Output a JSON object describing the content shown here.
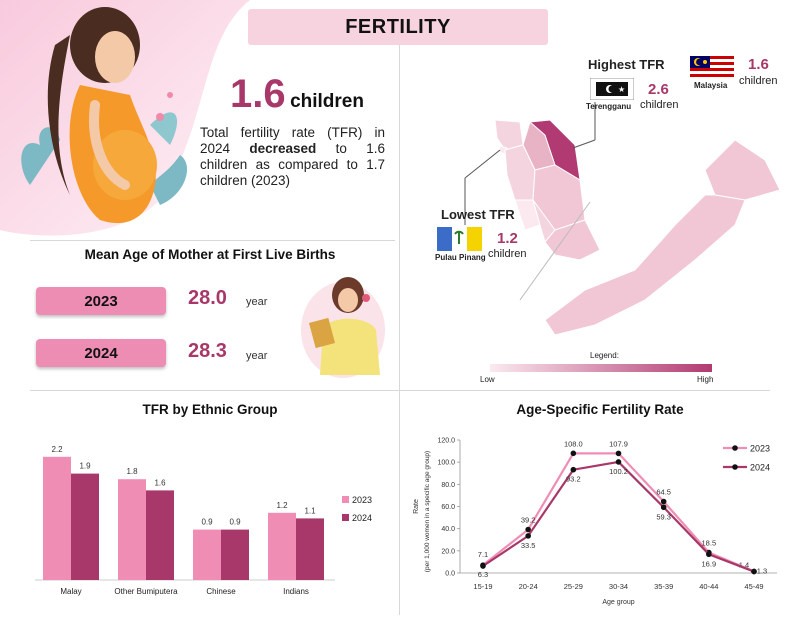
{
  "title": "FERTILITY",
  "tfr_summary": {
    "value": "1.6",
    "unit": "children",
    "description_pre": "Total fertility rate (TFR) in 2024 ",
    "description_bold": "decreased",
    "description_post": " to 1.6 children as compared to 1.7 children (2023)"
  },
  "map_panel": {
    "highest_label": "Highest TFR",
    "highest_state": "Terengganu",
    "highest_value": "2.6",
    "highest_unit": "children",
    "malaysia_label": "Malaysia",
    "malaysia_value": "1.6",
    "malaysia_unit": "children",
    "lowest_label": "Lowest TFR",
    "lowest_state": "Pulau Pinang",
    "lowest_value": "1.2",
    "lowest_unit": "children",
    "legend_title": "Legend:",
    "legend_low": "Low",
    "legend_high": "High",
    "colors": {
      "low": "#f8e3ea",
      "mid": "#e9b3c6",
      "high": "#b13a72"
    }
  },
  "mean_age": {
    "title": "Mean Age of Mother at First Live Births",
    "rows": [
      {
        "year": "2023",
        "value": "28.0",
        "unit": "year"
      },
      {
        "year": "2024",
        "value": "28.3",
        "unit": "year"
      }
    ]
  },
  "chart_data": [
    {
      "type": "bar",
      "title": "TFR by Ethnic Group",
      "categories": [
        "Malay",
        "Other Bumiputera",
        "Chinese",
        "Indians"
      ],
      "series": [
        {
          "name": "2023",
          "color": "#ef8db4",
          "values": [
            2.2,
            1.8,
            0.9,
            1.2
          ],
          "labels": [
            "2.2",
            "1.8",
            "0.9",
            "1.2"
          ]
        },
        {
          "name": "2024",
          "color": "#a8386a",
          "values": [
            1.9,
            1.6,
            0.9,
            1.1
          ],
          "labels": [
            "1.9",
            "1.6",
            "0.9",
            "1.1"
          ]
        }
      ],
      "ylim": [
        0,
        2.5
      ],
      "xlabel": "",
      "ylabel": "",
      "legend": "right"
    },
    {
      "type": "line",
      "title": "Age-Specific Fertility Rate",
      "categories": [
        "15-19",
        "20-24",
        "25-29",
        "30-34",
        "35-39",
        "40-44",
        "45-49"
      ],
      "series": [
        {
          "name": "2023",
          "color": "#ef8db4",
          "values": [
            7.1,
            39.2,
            108.0,
            107.9,
            64.5,
            18.5,
            1.4
          ],
          "labels": [
            "7.1",
            "39.2",
            "108.0",
            "107.9",
            "64.5",
            "18.5",
            "1.4"
          ]
        },
        {
          "name": "2024",
          "color": "#a8386a",
          "values": [
            6.3,
            33.5,
            93.2,
            100.2,
            59.3,
            16.9,
            1.3
          ],
          "labels": [
            "6.3",
            "33.5",
            "93.2",
            "100.2",
            "59.3",
            "16.9",
            "1.3"
          ]
        }
      ],
      "ylim": [
        0,
        120
      ],
      "yticks": [
        "0.0",
        "20.0",
        "40.0",
        "60.0",
        "80.0",
        "100.0",
        "120.0"
      ],
      "xlabel": "Age group",
      "ylabel": "Rate",
      "ylabel_sub": "(per 1,000 women in a specific age group)",
      "legend": "top-right"
    }
  ]
}
